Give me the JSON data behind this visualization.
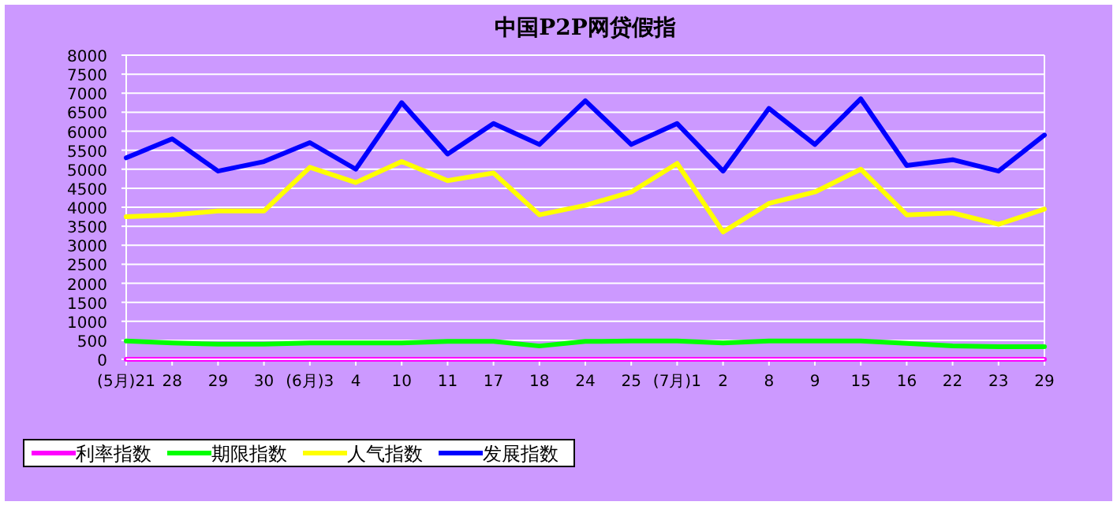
{
  "chart_data": {
    "type": "line",
    "title": "中国P2P网贷假指",
    "categories": [
      "(5月)21",
      "28",
      "29",
      "30",
      "(6月)3",
      "4",
      "10",
      "11",
      "17",
      "18",
      "24",
      "25",
      "(7月)1",
      "2",
      "8",
      "9",
      "15",
      "16",
      "22",
      "23",
      "29"
    ],
    "series": [
      {
        "name": "利率指数",
        "color": "#ff00ff",
        "values": [
          0,
          0,
          0,
          0,
          0,
          0,
          0,
          0,
          0,
          0,
          0,
          0,
          0,
          0,
          0,
          0,
          0,
          0,
          0,
          0,
          0
        ]
      },
      {
        "name": "期限指数",
        "color": "#00ff00",
        "values": [
          480,
          430,
          400,
          400,
          430,
          430,
          430,
          470,
          470,
          350,
          470,
          480,
          480,
          430,
          480,
          480,
          480,
          420,
          350,
          330,
          330
        ]
      },
      {
        "name": "人气指数",
        "color": "#ffff00",
        "values": [
          3750,
          3800,
          3900,
          3900,
          5050,
          4650,
          5200,
          4700,
          4900,
          3800,
          4050,
          4400,
          5150,
          3350,
          4100,
          4400,
          5000,
          3800,
          3850,
          3550,
          3950
        ]
      },
      {
        "name": "发展指数",
        "color": "#0000ff",
        "values": [
          5300,
          5800,
          4950,
          5200,
          5700,
          5000,
          6750,
          5400,
          6200,
          5650,
          6800,
          5650,
          6200,
          4950,
          6600,
          5650,
          6850,
          5100,
          5250,
          4950,
          5900
        ]
      }
    ],
    "ylim": [
      0,
      8000
    ],
    "yticks": [
      0,
      500,
      1000,
      1500,
      2000,
      2500,
      3000,
      3500,
      4000,
      4500,
      5000,
      5500,
      6000,
      6500,
      7000,
      7500,
      8000
    ],
    "grid": "y",
    "legend": "bottom left",
    "marker": "none",
    "line_style": "solid"
  }
}
